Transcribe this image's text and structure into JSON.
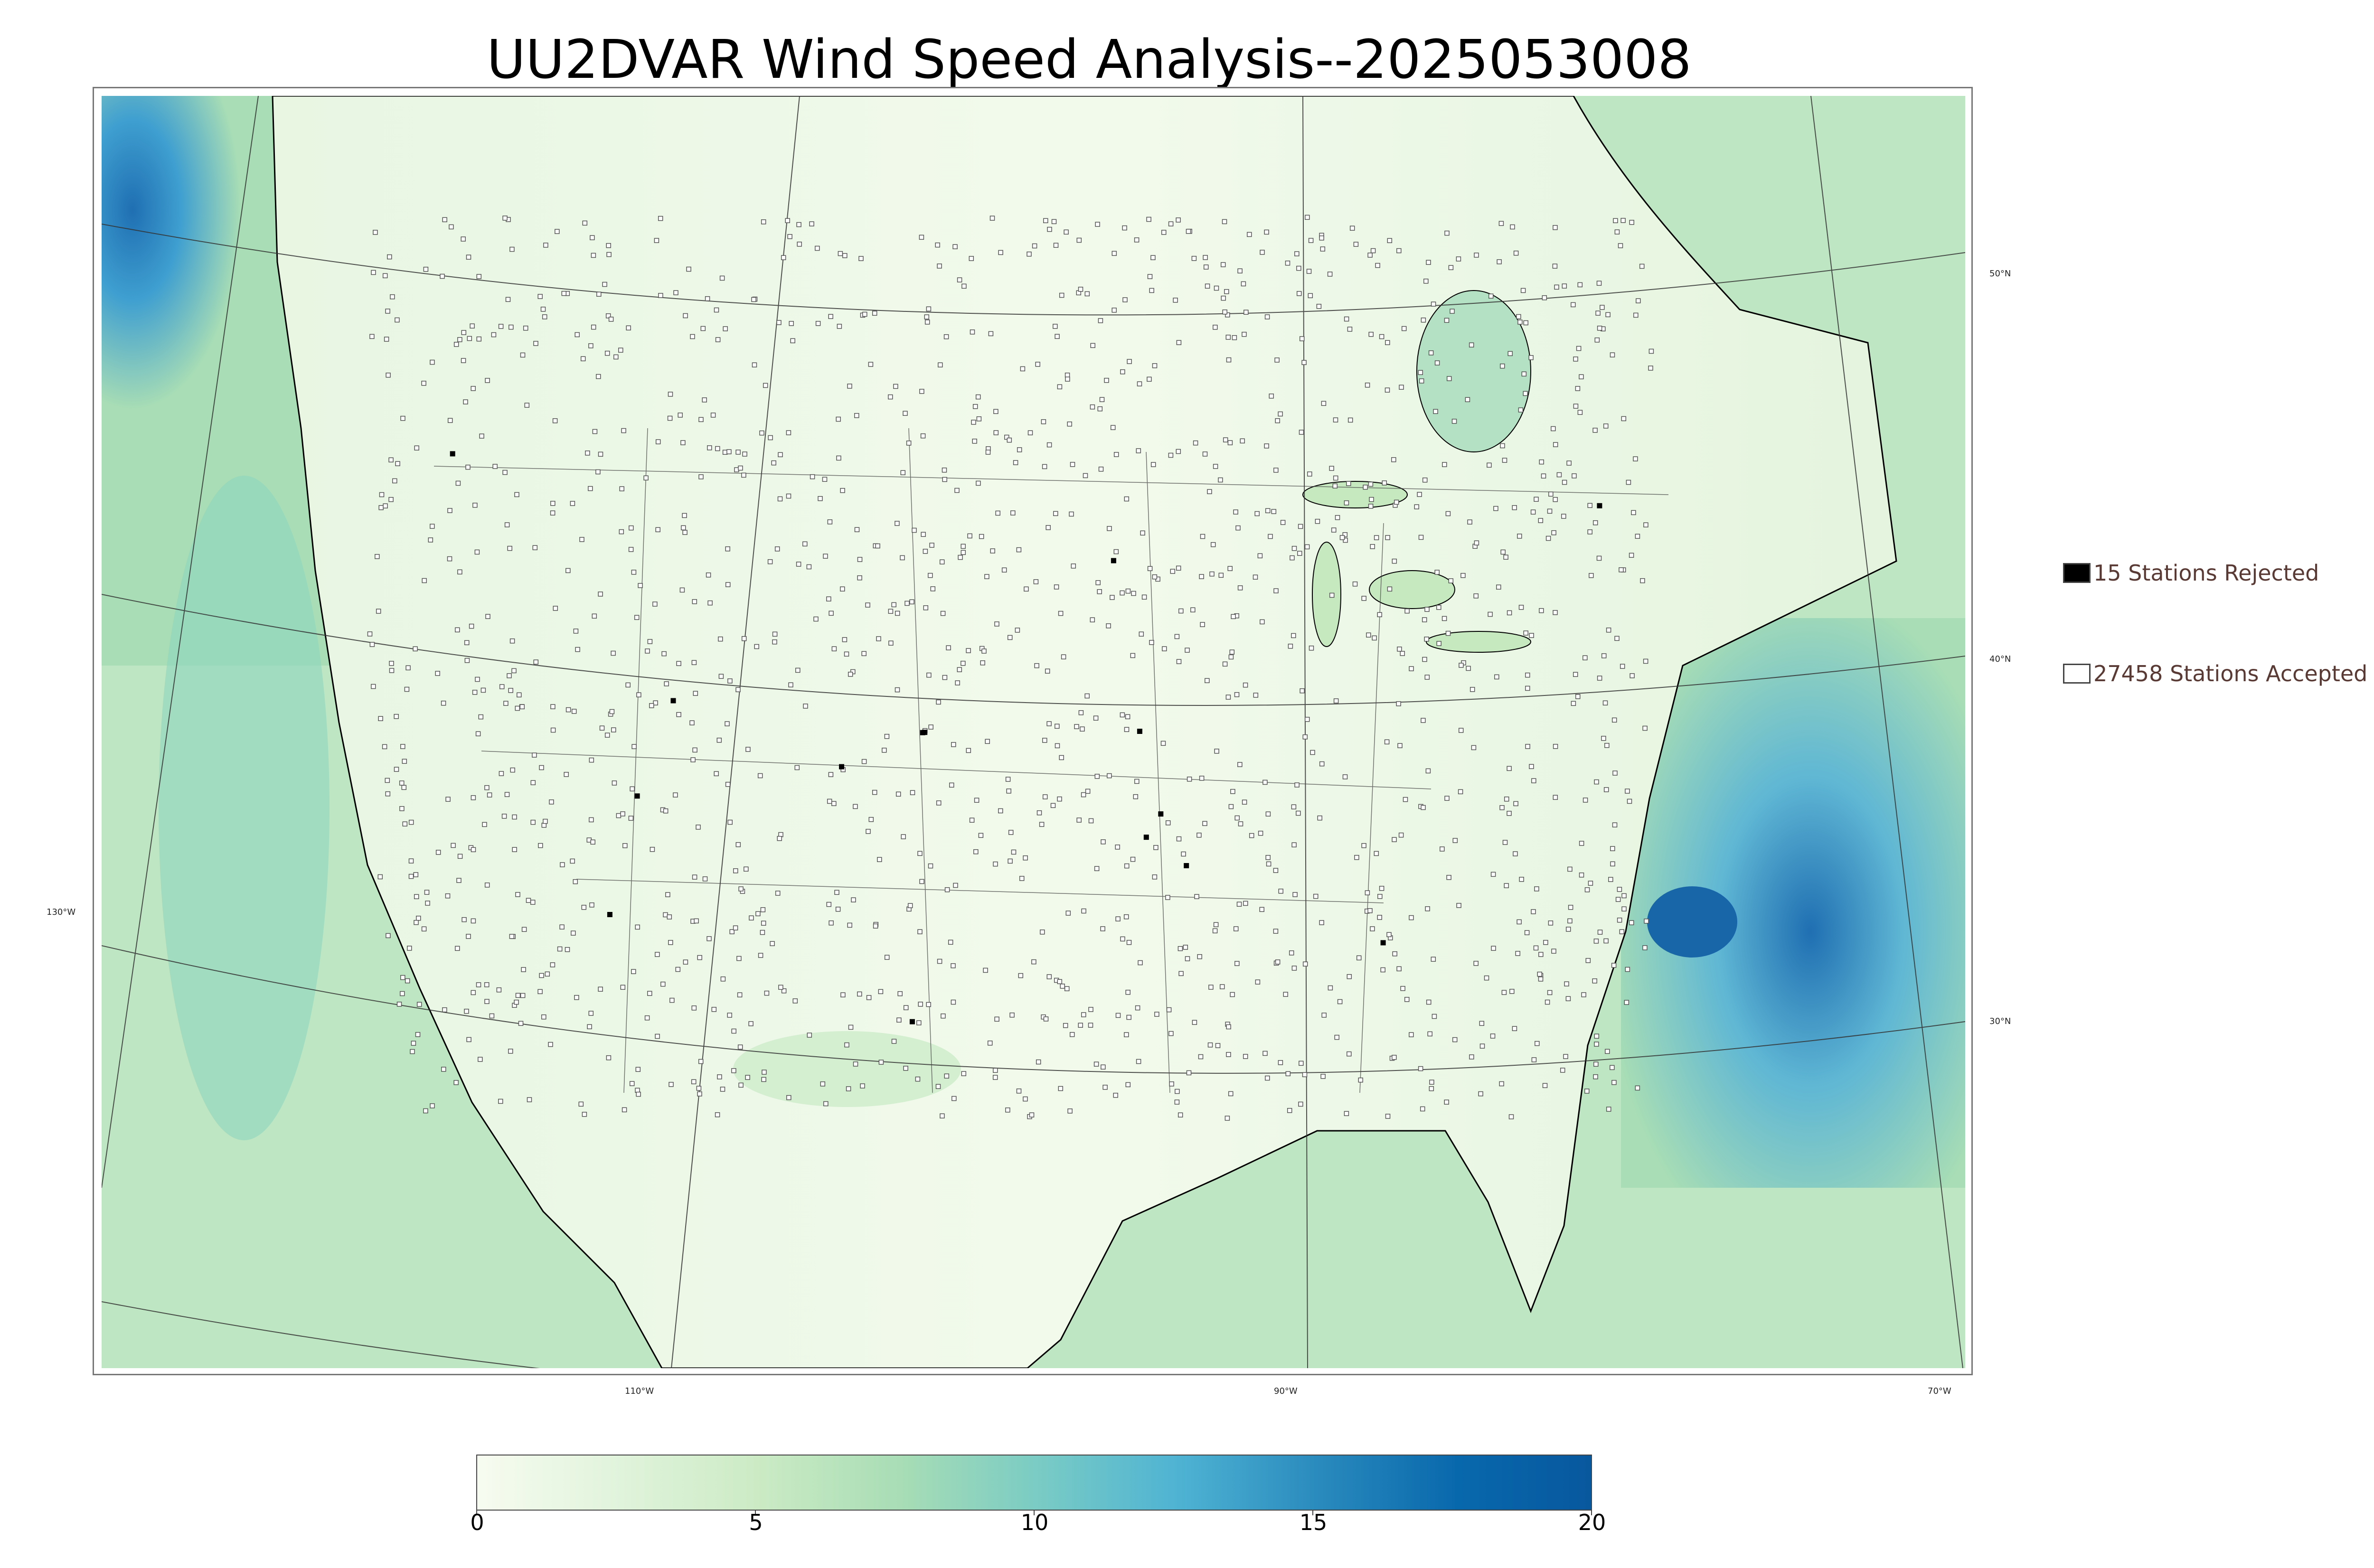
{
  "title": "UU2DVAR Wind Speed Analysis--2025053008",
  "map": {
    "lon_labels": [
      "130°W",
      "110°W",
      "90°W",
      "70°W"
    ],
    "lat_labels": [
      "50°N",
      "40°N",
      "30°N"
    ]
  },
  "legend": {
    "rejected": "15 Stations Rejected",
    "accepted": "27458 Stations Accepted"
  },
  "colorbar": {
    "ticks": [
      "0",
      "5",
      "10",
      "15",
      "20"
    ],
    "min": 0,
    "max": 20,
    "colors": [
      "#f7fcf0",
      "#e0f3db",
      "#ccebc5",
      "#a8ddb5",
      "#7bccc4",
      "#4eb3d3",
      "#2b8cbe",
      "#0868ac",
      "#08589e"
    ]
  }
}
